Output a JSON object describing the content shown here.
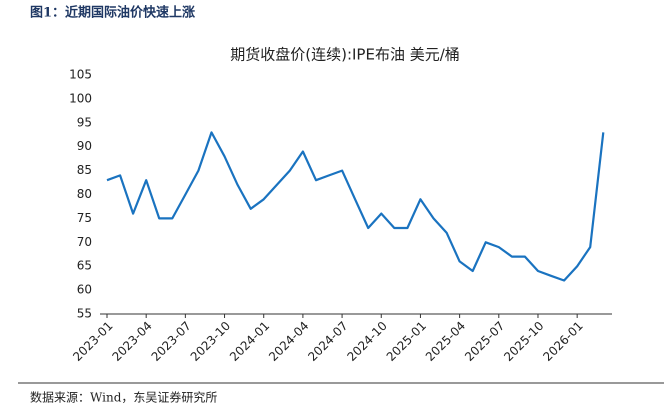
{
  "header": "图1：近期国际油价快速上涨",
  "source": "数据来源：Wind，东吴证券研究所",
  "chart_data": {
    "type": "line",
    "title": "期货收盘价(连续):IPE布油 美元/桶",
    "x": [
      "2023-01",
      "2023-02",
      "2023-03",
      "2023-04",
      "2023-05",
      "2023-06",
      "2023-07",
      "2023-08",
      "2023-09",
      "2023-10",
      "2023-11",
      "2023-12",
      "2024-01",
      "2024-02",
      "2024-03",
      "2024-04",
      "2024-05",
      "2024-06",
      "2024-07",
      "2024-08",
      "2024-09",
      "2024-10",
      "2024-11",
      "2024-12",
      "2025-01",
      "2025-02",
      "2025-03",
      "2025-04",
      "2025-05",
      "2025-06",
      "2025-07",
      "2025-08",
      "2025-09",
      "2025-10",
      "2025-11",
      "2025-12",
      "2026-01",
      "2026-02",
      "2026-03"
    ],
    "series": [
      {
        "name": "期货收盘价(连续):IPE布油",
        "color": "#1a73c0",
        "values": [
          83,
          84,
          76,
          83,
          75,
          75,
          80,
          85,
          93,
          88,
          82,
          77,
          79,
          82,
          85,
          89,
          83,
          84,
          85,
          79,
          73,
          76,
          73,
          73,
          79,
          75,
          72,
          66,
          64,
          70,
          69,
          67,
          67,
          64,
          63,
          62,
          65,
          69,
          93
        ]
      }
    ],
    "xticks": [
      "2023-01",
      "2023-04",
      "2023-07",
      "2023-10",
      "2024-01",
      "2024-04",
      "2024-07",
      "2024-10",
      "2025-01",
      "2025-04",
      "2025-07",
      "2025-10",
      "2026-01"
    ],
    "ylim": [
      55,
      105
    ],
    "yticks": [
      55,
      60,
      65,
      70,
      75,
      80,
      85,
      90,
      95,
      100,
      105
    ]
  }
}
